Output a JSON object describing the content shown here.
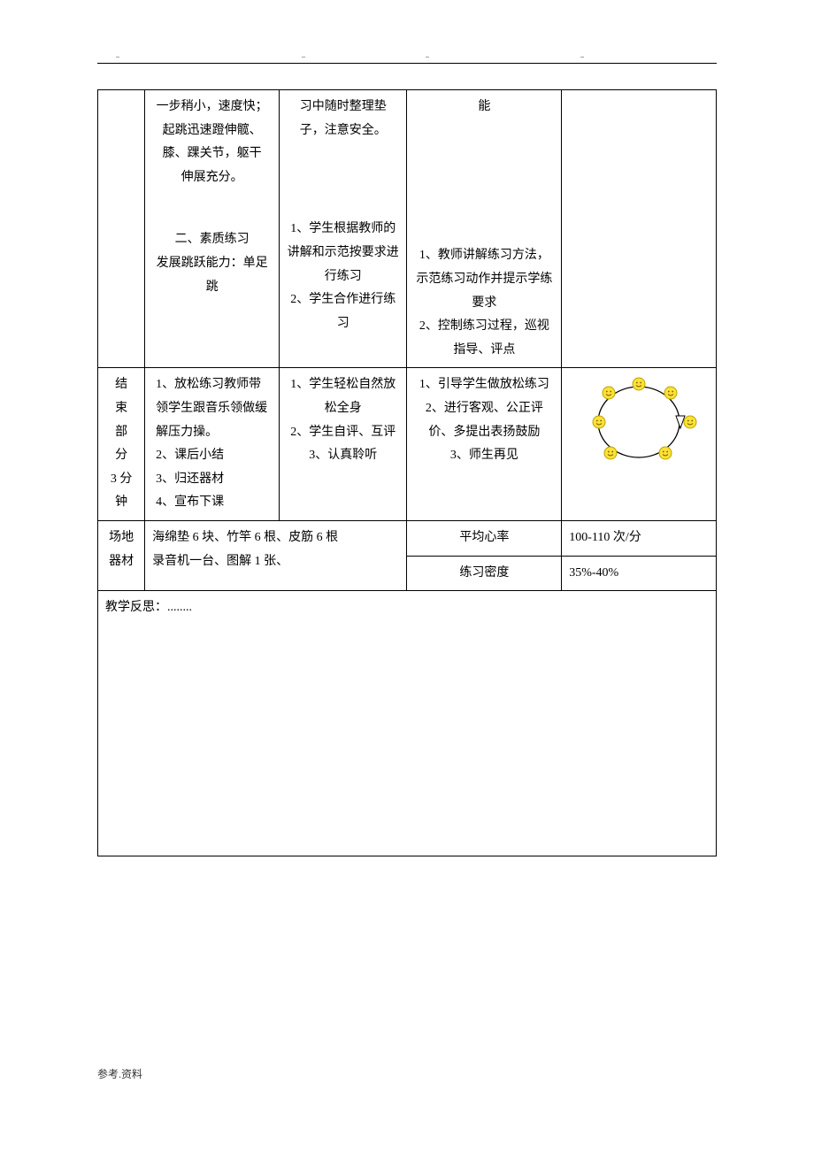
{
  "header_dots": [
    "..",
    "..",
    "..",
    ".."
  ],
  "row_top_noborder": {
    "col2_lines": [
      "一步稍小，速度快；",
      "起跳迅速蹬伸髋、",
      "膝、踝关节，躯干",
      "伸展充分。"
    ],
    "col3_lines": [
      "习中随时整理垫",
      "子，注意安全。"
    ],
    "col4_lines": [
      "能"
    ]
  },
  "row_quality": {
    "col2_title": "二、素质练习",
    "col2_sub": "发展跳跃能力：单足跳",
    "col3_lines": [
      "1、学生根据教师的讲解和示范按要求进行练习",
      "2、学生合作进行练习"
    ],
    "col4_lines": [
      "1、教师讲解练习方法，示范练习动作并提示学练要求",
      "2、控制练习过程，巡视指导、评点"
    ]
  },
  "row_end": {
    "label_lines": [
      "结",
      "束",
      "部",
      "分",
      "3 分",
      "钟"
    ],
    "col2_lines": [
      "1、放松练习教师带领学生跟音乐领做缓解压力操。",
      "2、课后小结",
      "3、归还器材",
      "4、宣布下课"
    ],
    "col3_lines": [
      "1、学生轻松自然放松全身",
      "2、学生自评、互评",
      "3、认真聆听"
    ],
    "col4_lines": [
      "1、引导学生做放松练习",
      "2、进行客观、公正评价、多提出表扬鼓励",
      "3、师生再见"
    ]
  },
  "row_equip": {
    "label_lines": [
      "场地",
      "器材"
    ],
    "equipment": [
      "海绵垫 6 块、竹竿 6 根、皮筋 6 根",
      "录音机一台、图解 1 张、"
    ],
    "metrics": [
      {
        "label": "平均心率",
        "value": "100-110 次/分"
      },
      {
        "label": "练习密度",
        "value": "35%-40%"
      }
    ]
  },
  "reflection_label": "教学反思：........",
  "footer": "参考.资料",
  "diagram": {
    "circle_stroke": "#000000",
    "smiley_fill": "#ffe135",
    "smiley_stroke": "#b8a400",
    "smiley_count": 6,
    "triangle_fill": "#ffffff",
    "triangle_stroke": "#000000"
  }
}
